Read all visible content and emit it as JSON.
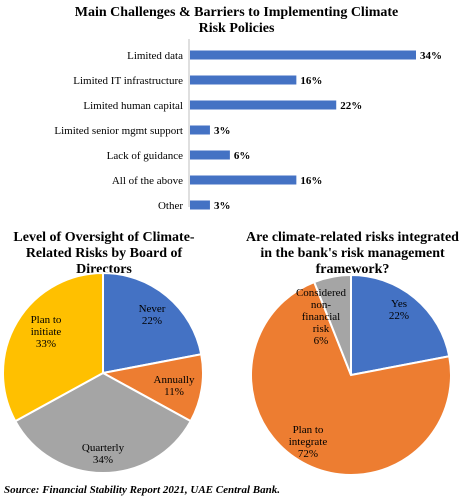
{
  "source": "Source: Financial Stability Report 2021, UAE Central Bank.",
  "chart_data": [
    {
      "type": "bar",
      "orientation": "horizontal",
      "title": "Main Challenges & Barriers to Implementing Climate Risk Policies",
      "categories": [
        "Limited data",
        "Limited IT infrastructure",
        "Limited human capital",
        "Limited senior mgmt support",
        "Lack of guidance",
        "All of the above",
        "Other"
      ],
      "values": [
        34,
        16,
        22,
        3,
        6,
        16,
        3
      ],
      "value_labels": [
        "34%",
        "16%",
        "22%",
        "3%",
        "6%",
        "16%",
        "3%"
      ],
      "xlim": [
        0,
        34
      ],
      "grid": false,
      "colors": {
        "bar": "#4472c4"
      }
    },
    {
      "type": "pie",
      "title": "Level of Oversight of Climate-Related Risks by Board of Directors",
      "slices": [
        {
          "label": [
            "Never",
            "22%"
          ],
          "value": 22,
          "color": "#4472c4"
        },
        {
          "label": [
            "Annually",
            "11%"
          ],
          "value": 11,
          "color": "#ed7d31"
        },
        {
          "label": [
            "Quarterly",
            "34%"
          ],
          "value": 34,
          "color": "#a5a5a5"
        },
        {
          "label": [
            "Plan to",
            "initiate",
            "33%"
          ],
          "value": 33,
          "color": "#ffc000"
        }
      ]
    },
    {
      "type": "pie",
      "title": "Are climate-related risks integrated in the bank's risk management framework?",
      "slices": [
        {
          "label": [
            "Yes",
            "22%"
          ],
          "value": 22,
          "color": "#4472c4"
        },
        {
          "label": [
            "Plan to",
            "integrate",
            "72%"
          ],
          "value": 72,
          "color": "#ed7d31"
        },
        {
          "label": [
            "Considered",
            "non-",
            "financial",
            "risk",
            "6%"
          ],
          "value": 6,
          "color": "#a5a5a5"
        }
      ]
    }
  ]
}
